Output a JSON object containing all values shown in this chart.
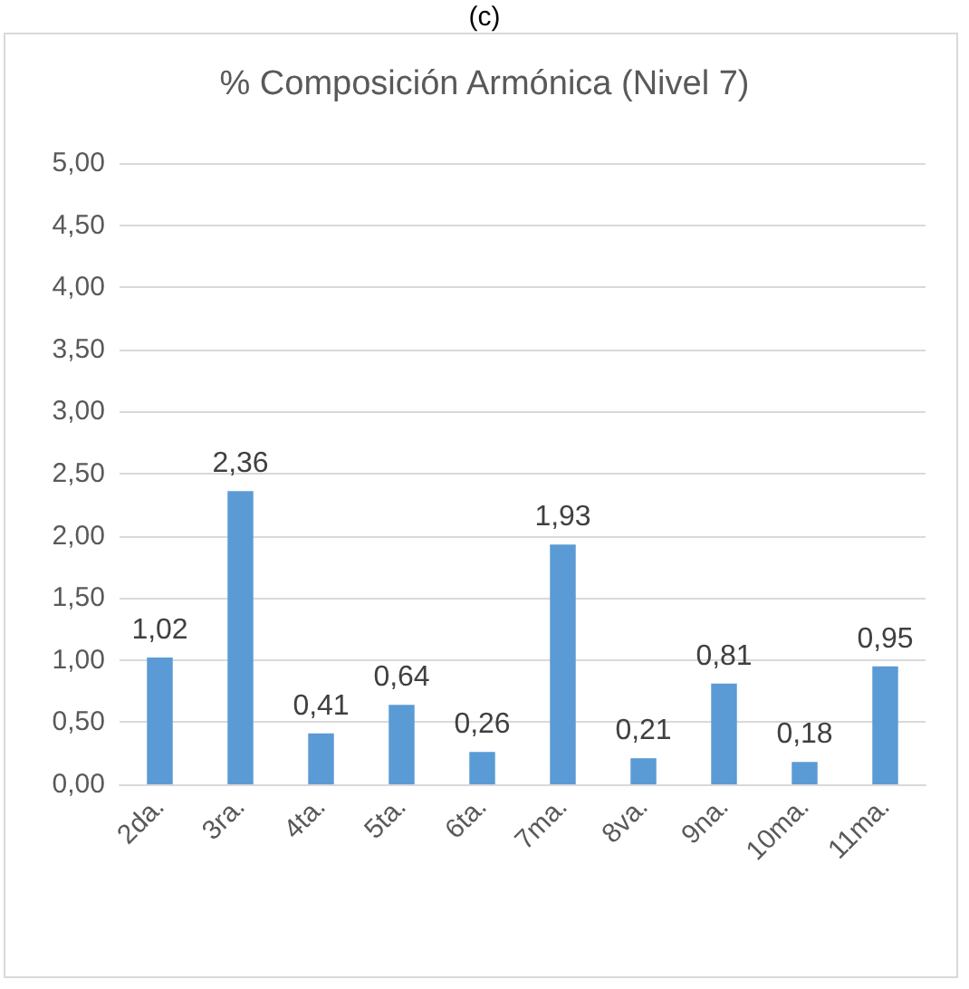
{
  "chart_data": {
    "type": "bar",
    "title": "% Composición Armónica (Nivel 7)",
    "annotations": [
      "(c)"
    ],
    "categories": [
      "2da.",
      "3ra.",
      "4ta.",
      "5ta.",
      "6ta.",
      "7ma.",
      "8va.",
      "9na.",
      "10ma.",
      "11ma."
    ],
    "values": [
      1.02,
      2.36,
      0.41,
      0.64,
      0.26,
      1.93,
      0.21,
      0.81,
      0.18,
      0.95
    ],
    "value_labels": [
      "1,02",
      "2,36",
      "0,41",
      "0,64",
      "0,26",
      "1,93",
      "0,21",
      "0,81",
      "0,18",
      "0,95"
    ],
    "color": "#5b9bd5",
    "ylim": [
      0,
      5
    ],
    "yticks": [
      {
        "value": 0,
        "label": "0,00"
      },
      {
        "value": 0.5,
        "label": "0,50"
      },
      {
        "value": 1,
        "label": "1,00"
      },
      {
        "value": 1.5,
        "label": "1,50"
      },
      {
        "value": 2,
        "label": "2,00"
      },
      {
        "value": 2.5,
        "label": "2,50"
      },
      {
        "value": 3,
        "label": "3,00"
      },
      {
        "value": 3.5,
        "label": "3,50"
      },
      {
        "value": 4,
        "label": "4,00"
      },
      {
        "value": 4.5,
        "label": "4,50"
      },
      {
        "value": 5,
        "label": "5,00"
      }
    ],
    "grid": "y"
  }
}
